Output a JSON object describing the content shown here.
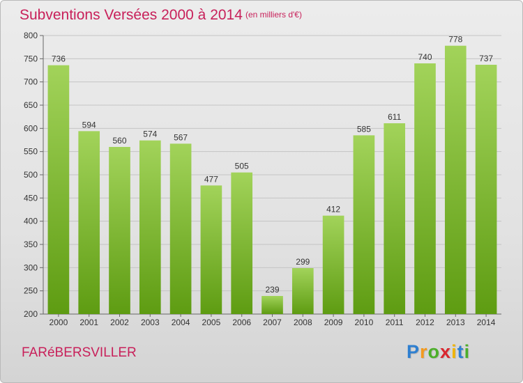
{
  "title": "Subventions Versées 2000 à 2014",
  "subtitle": "(en milliers d'€)",
  "commune": "FARéBERSVILLER",
  "logo": {
    "letters": [
      "P",
      "r",
      "o",
      "x",
      "i",
      "t",
      "i"
    ],
    "colors": [
      "#2e7fd0",
      "#f39a1e",
      "#4caf2a",
      "#d9262e",
      "#f0b400",
      "#2e7fd0",
      "#4caf2a"
    ]
  },
  "colors": {
    "bar_top": "#a2d35a",
    "bar_bottom": "#5e9c12",
    "accent": "#c8205a",
    "grid": "#c4c4c4"
  },
  "chart_data": {
    "type": "bar",
    "title": "Subventions Versées 2000 à 2014",
    "subtitle": "(en milliers d'€)",
    "categories": [
      "2000",
      "2001",
      "2002",
      "2003",
      "2004",
      "2005",
      "2006",
      "2007",
      "2008",
      "2009",
      "2010",
      "2011",
      "2012",
      "2013",
      "2014"
    ],
    "values": [
      736,
      594,
      560,
      574,
      567,
      477,
      505,
      239,
      299,
      412,
      585,
      611,
      740,
      778,
      737
    ],
    "ylim": [
      200,
      800
    ],
    "yticks": [
      200,
      250,
      300,
      350,
      400,
      450,
      500,
      550,
      600,
      650,
      700,
      750,
      800
    ],
    "grid": true
  }
}
